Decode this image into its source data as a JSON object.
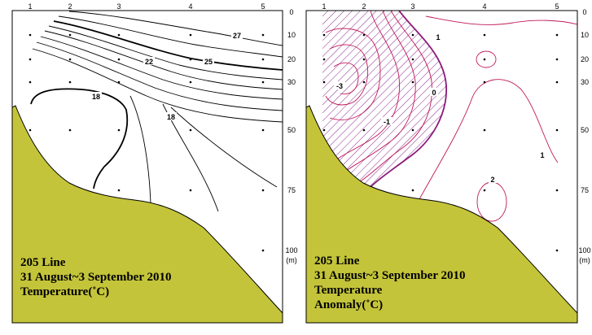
{
  "colors": {
    "seabed": "#c4c43a",
    "anomaly_line": "#c0185a",
    "hatch": "#8a2a90",
    "frame": "#000000"
  },
  "left_panel": {
    "station_labels": [
      "1",
      "2",
      "3",
      "4",
      "5"
    ],
    "depth_labels": [
      "0",
      "10",
      "20",
      "30",
      "50",
      "75",
      "100"
    ],
    "depth_unit": "(m)",
    "contour_labels": [
      "27",
      "25",
      "22",
      "18",
      "18"
    ],
    "caption": {
      "line1": "205 Line",
      "line2": "31 August~3 September 2010",
      "line3": "Temperature(˚C)"
    }
  },
  "right_panel": {
    "station_labels": [
      "1",
      "2",
      "3",
      "4",
      "5"
    ],
    "depth_labels": [
      "0",
      "10",
      "20",
      "30",
      "50",
      "75",
      "100"
    ],
    "depth_unit": "(m)",
    "contour_labels": [
      "1",
      "0",
      "-3",
      "-1",
      "1",
      "2"
    ],
    "caption": {
      "line1": "205 Line",
      "line2": "31 August~3 September 2010",
      "line3": "Temperature",
      "line4": "Anomaly(˚C)"
    }
  }
}
